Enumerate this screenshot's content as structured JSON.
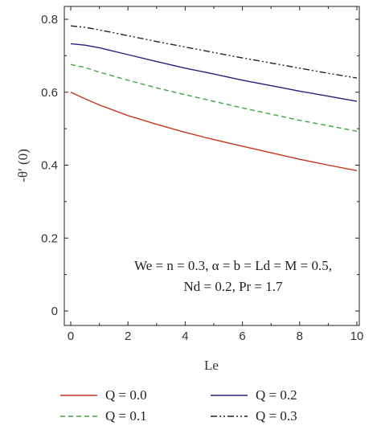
{
  "chart_data": {
    "type": "line",
    "title": "",
    "xlabel": "Le",
    "ylabel": "-θ′ (0)",
    "xlim": [
      0,
      10
    ],
    "ylim": [
      0,
      0.8
    ],
    "xticks": [
      0,
      2,
      4,
      6,
      8,
      10
    ],
    "yticks": [
      0,
      0.2,
      0.4,
      0.6,
      0.8
    ],
    "xtick_labels": [
      "0",
      "2",
      "4",
      "6",
      "8",
      "10"
    ],
    "ytick_labels": [
      "0",
      "0.2",
      "0.4",
      "0.6",
      "0.8"
    ],
    "grid": false,
    "legend_position": "bottom",
    "annotation": [
      "We = n = 0.3, α = b = Ld = M = 0.5,",
      "Nd = 0.2, Pr = 1.7"
    ],
    "x": [
      0,
      0.5,
      1,
      2,
      3,
      4,
      5,
      6,
      7,
      8,
      9,
      10
    ],
    "series": [
      {
        "name": "Q = 0.0",
        "color": "#c8351f",
        "dash": "solid",
        "values": [
          0.6,
          0.582,
          0.565,
          0.536,
          0.512,
          0.49,
          0.47,
          0.452,
          0.434,
          0.416,
          0.4,
          0.385
        ]
      },
      {
        "name": "Q = 0.1",
        "color": "#3fa53f",
        "dash": "dashed",
        "values": [
          0.676,
          0.668,
          0.655,
          0.633,
          0.612,
          0.593,
          0.575,
          0.557,
          0.54,
          0.523,
          0.508,
          0.493
        ]
      },
      {
        "name": "Q = 0.2",
        "color": "#26207e",
        "dash": "solid",
        "values": [
          0.733,
          0.729,
          0.722,
          0.703,
          0.684,
          0.666,
          0.65,
          0.633,
          0.618,
          0.603,
          0.589,
          0.575
        ]
      },
      {
        "name": "Q = 0.3",
        "color": "#222222",
        "dash": "dashdotdot",
        "values": [
          0.782,
          0.778,
          0.771,
          0.755,
          0.739,
          0.724,
          0.709,
          0.694,
          0.68,
          0.666,
          0.652,
          0.639
        ]
      }
    ]
  }
}
